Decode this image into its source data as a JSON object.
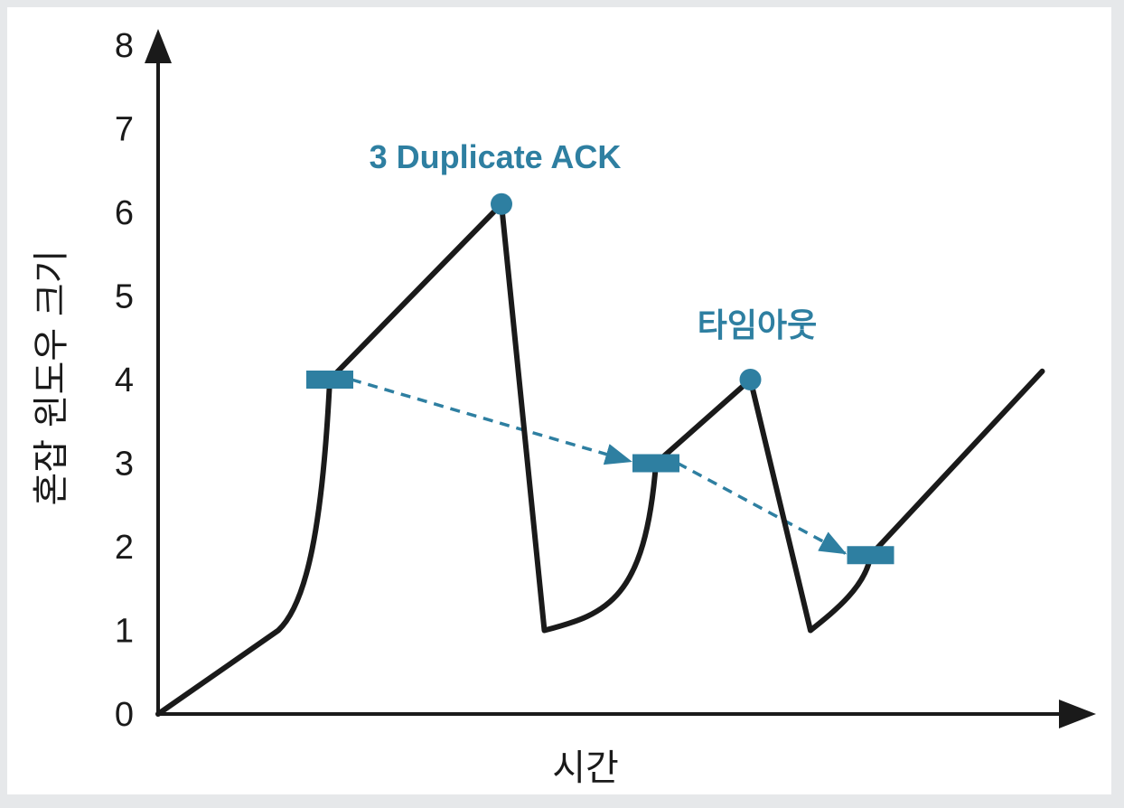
{
  "chart_data": {
    "type": "line",
    "xlabel": "시간",
    "ylabel": "혼잡 윈도우 크기",
    "ylim": [
      0,
      8
    ],
    "yticks": [
      "0",
      "1",
      "2",
      "3",
      "4",
      "5",
      "6",
      "7",
      "8"
    ],
    "xticks": [],
    "grid": false,
    "legend": "none",
    "colors": {
      "line": "#1a1a1a",
      "accent": "#2e7fa1"
    },
    "series": [
      {
        "points": [
          [
            0,
            0
          ],
          [
            1.4,
            1.0
          ],
          [
            2.0,
            4.0
          ],
          [
            4.0,
            6.1
          ],
          [
            4.5,
            1.0
          ],
          [
            5.8,
            3.0
          ],
          [
            6.9,
            4.0
          ],
          [
            7.6,
            1.0
          ],
          [
            8.3,
            1.9
          ],
          [
            10.3,
            4.1
          ]
        ]
      }
    ],
    "events": [
      {
        "label": "3 Duplicate ACK",
        "x": 4.0,
        "y": 6.1
      },
      {
        "label": "타임아웃",
        "x": 6.9,
        "y": 4.0
      }
    ],
    "thresholds": [
      {
        "x": 2.0,
        "y": 4.0
      },
      {
        "x": 5.8,
        "y": 3.0
      },
      {
        "x": 8.3,
        "y": 1.9
      }
    ]
  }
}
